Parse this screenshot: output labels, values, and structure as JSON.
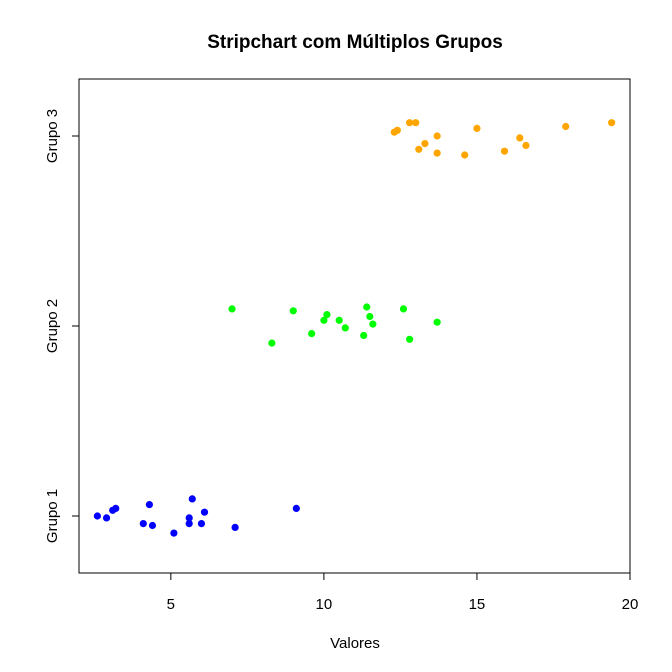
{
  "chart_data": {
    "type": "scatter",
    "title": "Stripchart com Múltiplos Grupos",
    "xlabel": "Valores",
    "ylabel": "",
    "xlim": [
      2,
      20
    ],
    "ylim": [
      0.7,
      3.3
    ],
    "x_ticks": [
      5,
      10,
      15,
      20
    ],
    "y_ticks": [
      {
        "value": 1,
        "label": "Grupo 1"
      },
      {
        "value": 2,
        "label": "Grupo 2"
      },
      {
        "value": 3,
        "label": "Grupo 3"
      }
    ],
    "grid": false,
    "legend": "none",
    "series": [
      {
        "group": 1,
        "color": "#0000FF",
        "points": [
          {
            "x": 2.6,
            "y": 1.0
          },
          {
            "x": 2.9,
            "y": 0.99
          },
          {
            "x": 3.1,
            "y": 1.03
          },
          {
            "x": 3.2,
            "y": 1.04
          },
          {
            "x": 4.1,
            "y": 0.96
          },
          {
            "x": 4.3,
            "y": 1.06
          },
          {
            "x": 4.4,
            "y": 0.95
          },
          {
            "x": 5.1,
            "y": 0.91
          },
          {
            "x": 5.6,
            "y": 0.96
          },
          {
            "x": 5.6,
            "y": 0.99
          },
          {
            "x": 5.7,
            "y": 1.09
          },
          {
            "x": 6.0,
            "y": 0.96
          },
          {
            "x": 6.1,
            "y": 1.02
          },
          {
            "x": 7.1,
            "y": 0.94
          },
          {
            "x": 9.1,
            "y": 1.04
          }
        ]
      },
      {
        "group": 2,
        "color": "#00FF00",
        "points": [
          {
            "x": 7.0,
            "y": 2.09
          },
          {
            "x": 8.3,
            "y": 1.91
          },
          {
            "x": 9.0,
            "y": 2.08
          },
          {
            "x": 9.6,
            "y": 1.96
          },
          {
            "x": 10.0,
            "y": 2.03
          },
          {
            "x": 10.1,
            "y": 2.06
          },
          {
            "x": 10.5,
            "y": 2.03
          },
          {
            "x": 10.7,
            "y": 1.99
          },
          {
            "x": 11.3,
            "y": 1.95
          },
          {
            "x": 11.4,
            "y": 2.1
          },
          {
            "x": 11.5,
            "y": 2.05
          },
          {
            "x": 11.6,
            "y": 2.01
          },
          {
            "x": 12.6,
            "y": 2.09
          },
          {
            "x": 12.8,
            "y": 1.93
          },
          {
            "x": 13.7,
            "y": 2.02
          }
        ]
      },
      {
        "group": 3,
        "color": "#FFA500",
        "points": [
          {
            "x": 12.3,
            "y": 3.02
          },
          {
            "x": 12.4,
            "y": 3.03
          },
          {
            "x": 12.8,
            "y": 3.07
          },
          {
            "x": 13.0,
            "y": 3.07
          },
          {
            "x": 13.1,
            "y": 2.93
          },
          {
            "x": 13.3,
            "y": 2.96
          },
          {
            "x": 13.7,
            "y": 3.0
          },
          {
            "x": 13.7,
            "y": 2.91
          },
          {
            "x": 14.6,
            "y": 2.9
          },
          {
            "x": 15.0,
            "y": 3.04
          },
          {
            "x": 15.9,
            "y": 2.92
          },
          {
            "x": 16.4,
            "y": 2.99
          },
          {
            "x": 16.6,
            "y": 2.95
          },
          {
            "x": 17.9,
            "y": 3.05
          },
          {
            "x": 19.4,
            "y": 3.07
          }
        ]
      }
    ]
  }
}
